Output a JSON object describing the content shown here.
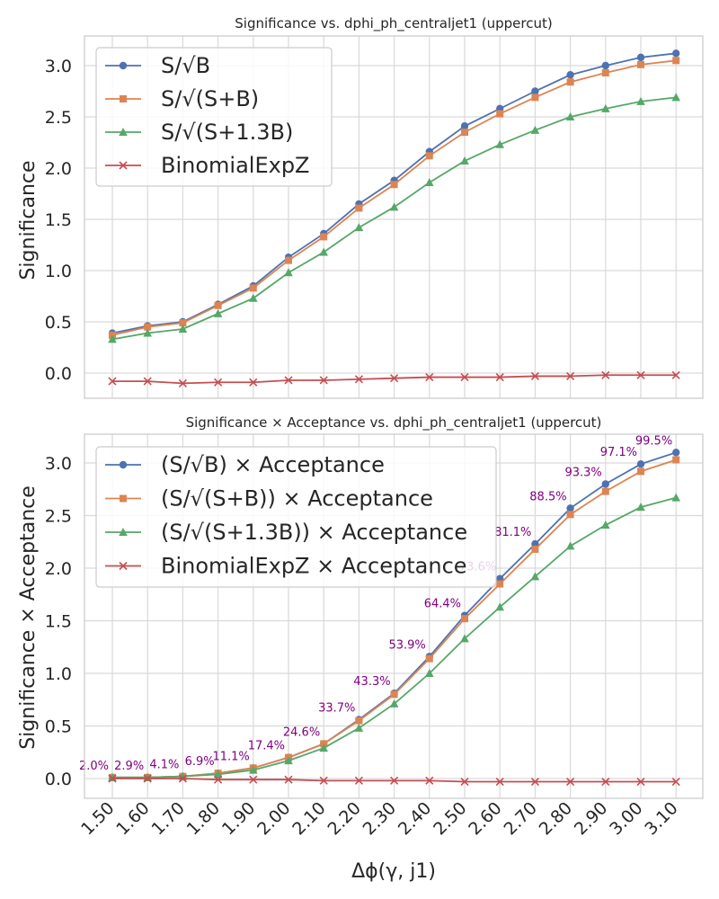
{
  "x_axis": {
    "label": "Δϕ(γ, j1)",
    "ticks": [
      "1.50",
      "1.60",
      "1.70",
      "1.80",
      "1.90",
      "2.00",
      "2.10",
      "2.20",
      "2.30",
      "2.40",
      "2.50",
      "2.60",
      "2.70",
      "2.80",
      "2.90",
      "3.00",
      "3.10"
    ]
  },
  "chart_data": [
    {
      "type": "line",
      "title": "Significance vs. dphi_ph_centraljet1 (uppercut)",
      "xlabel": "",
      "ylabel": "Significance",
      "x": [
        1.5,
        1.6,
        1.7,
        1.8,
        1.9,
        2.0,
        2.1,
        2.2,
        2.3,
        2.4,
        2.5,
        2.6,
        2.7,
        2.8,
        2.9,
        3.0,
        3.1
      ],
      "ylim": [
        -0.25,
        3.3
      ],
      "yticks": [
        "0.0",
        "0.5",
        "1.0",
        "1.5",
        "2.0",
        "2.5",
        "3.0"
      ],
      "grid": true,
      "legend_position": "top-left",
      "series": [
        {
          "name": "S/√B",
          "color": "#4c72b0",
          "marker": "circle",
          "values": [
            0.39,
            0.46,
            0.5,
            0.67,
            0.85,
            1.13,
            1.36,
            1.65,
            1.88,
            2.16,
            2.41,
            2.58,
            2.75,
            2.91,
            3.0,
            3.08,
            3.12
          ]
        },
        {
          "name": "S/√(S+B)",
          "color": "#dd8452",
          "marker": "square",
          "values": [
            0.37,
            0.45,
            0.49,
            0.66,
            0.83,
            1.1,
            1.33,
            1.61,
            1.84,
            2.12,
            2.35,
            2.53,
            2.69,
            2.84,
            2.93,
            3.01,
            3.05
          ]
        },
        {
          "name": "S/√(S+1.3B)",
          "color": "#55a868",
          "marker": "triangle",
          "values": [
            0.33,
            0.39,
            0.43,
            0.58,
            0.73,
            0.98,
            1.18,
            1.42,
            1.62,
            1.86,
            2.07,
            2.23,
            2.37,
            2.5,
            2.58,
            2.65,
            2.69
          ]
        },
        {
          "name": "BinomialExpZ",
          "color": "#c44e52",
          "marker": "x",
          "values": [
            -0.08,
            -0.08,
            -0.1,
            -0.09,
            -0.09,
            -0.07,
            -0.07,
            -0.06,
            -0.05,
            -0.04,
            -0.04,
            -0.04,
            -0.03,
            -0.03,
            -0.02,
            -0.02,
            -0.02
          ]
        }
      ]
    },
    {
      "type": "line",
      "title": "Significance × Acceptance vs. dphi_ph_centraljet1 (uppercut)",
      "xlabel": "Δϕ(γ, j1)",
      "ylabel": "Significance × Acceptance",
      "x": [
        1.5,
        1.6,
        1.7,
        1.8,
        1.9,
        2.0,
        2.1,
        2.2,
        2.3,
        2.4,
        2.5,
        2.6,
        2.7,
        2.8,
        2.9,
        3.0,
        3.1
      ],
      "ylim": [
        -0.18,
        3.28
      ],
      "yticks": [
        "0.0",
        "0.5",
        "1.0",
        "1.5",
        "2.0",
        "2.5",
        "3.0"
      ],
      "grid": true,
      "legend_position": "top-left",
      "series": [
        {
          "name": "(S/√B) × Acceptance",
          "color": "#4c72b0",
          "marker": "circle",
          "values": [
            0.01,
            0.01,
            0.02,
            0.05,
            0.1,
            0.2,
            0.33,
            0.56,
            0.81,
            1.16,
            1.55,
            1.9,
            2.23,
            2.57,
            2.8,
            2.99,
            3.1
          ]
        },
        {
          "name": "(S/√(S+B)) × Acceptance",
          "color": "#dd8452",
          "marker": "square",
          "values": [
            0.01,
            0.01,
            0.02,
            0.05,
            0.1,
            0.2,
            0.33,
            0.55,
            0.8,
            1.14,
            1.52,
            1.85,
            2.18,
            2.51,
            2.73,
            2.92,
            3.03
          ]
        },
        {
          "name": "(S/√(S+1.3B)) × Acceptance",
          "color": "#55a868",
          "marker": "triangle",
          "values": [
            0.01,
            0.01,
            0.02,
            0.04,
            0.08,
            0.17,
            0.29,
            0.48,
            0.71,
            1.0,
            1.33,
            1.63,
            1.92,
            2.21,
            2.41,
            2.58,
            2.67
          ]
        },
        {
          "name": "BinomialExpZ × Acceptance",
          "color": "#c44e52",
          "marker": "x",
          "values": [
            0.0,
            0.0,
            0.0,
            -0.01,
            -0.01,
            -0.01,
            -0.02,
            -0.02,
            -0.02,
            -0.02,
            -0.03,
            -0.03,
            -0.03,
            -0.03,
            -0.03,
            -0.03,
            -0.03
          ]
        }
      ],
      "annotations": [
        "2.0%",
        "2.9%",
        "4.1%",
        "6.9%",
        "11.1%",
        "17.4%",
        "24.6%",
        "33.7%",
        "43.3%",
        "53.9%",
        "64.4%",
        "73.6%",
        "81.1%",
        "88.5%",
        "93.3%",
        "97.1%",
        "99.5%"
      ]
    }
  ]
}
